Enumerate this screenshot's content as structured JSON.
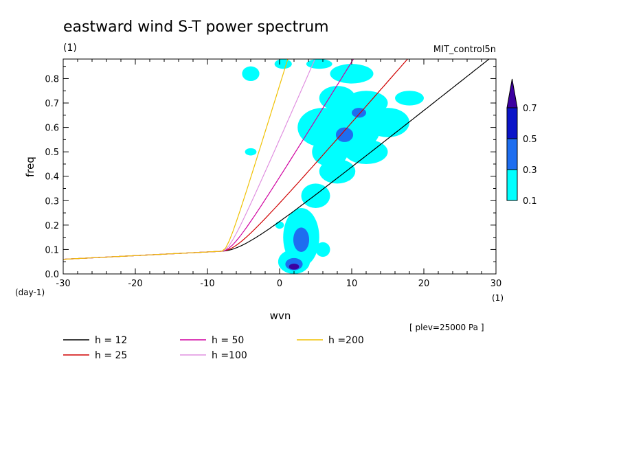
{
  "chart_data": {
    "type": "line",
    "title": "eastward wind S-T power spectrum",
    "subtitle_left": "(1)",
    "subtitle_right": "MIT_control5n",
    "xlabel": "wvn",
    "ylabel": "freq",
    "x_unit_label": "(1)",
    "y_unit_label": "(day-1)",
    "footnote": "[ plev=25000 Pa ]",
    "xlim": [
      -30,
      30
    ],
    "ylim": [
      0,
      0.88
    ],
    "x_ticks": [
      -30,
      -20,
      -10,
      0,
      10,
      20,
      30
    ],
    "y_ticks": [
      0.0,
      0.1,
      0.2,
      0.3,
      0.4,
      0.5,
      0.6,
      0.7,
      0.8
    ],
    "x_tick_labels": [
      "-30",
      "-20",
      "-10",
      "0",
      "10",
      "20",
      "30"
    ],
    "y_tick_labels": [
      "0.0",
      "0.1",
      "0.2",
      "0.3",
      "0.4",
      "0.5",
      "0.6",
      "0.7",
      "0.8"
    ],
    "series": [
      {
        "name": "h = 12",
        "color": "#000000",
        "h": 12
      },
      {
        "name": "h = 25",
        "color": "#d00000",
        "h": 25
      },
      {
        "name": "h = 50",
        "color": "#d000a0",
        "h": 50
      },
      {
        "name": "h =100",
        "color": "#e090e0",
        "h": 100
      },
      {
        "name": "h =200",
        "color": "#f0c000",
        "h": 200
      }
    ],
    "colorbar": {
      "levels": [
        "0.1",
        "0.3",
        "0.5",
        "0.7"
      ],
      "colors": [
        "#00ffff",
        "#1e6ef0",
        "#0a14c8",
        "#3c00a0"
      ]
    },
    "contour_blobs": [
      {
        "x": 5.5,
        "y": 0.86,
        "r": 1.8,
        "ry": 0.02,
        "level": 0
      },
      {
        "x": 0.5,
        "y": 0.86,
        "r": 1.2,
        "ry": 0.02,
        "level": 0
      },
      {
        "x": 10,
        "y": 0.82,
        "r": 3,
        "ry": 0.04,
        "level": 0
      },
      {
        "x": 8,
        "y": 0.72,
        "r": 2.5,
        "ry": 0.05,
        "level": 0
      },
      {
        "x": 12,
        "y": 0.7,
        "r": 3,
        "ry": 0.05,
        "level": 0
      },
      {
        "x": 6,
        "y": 0.6,
        "r": 3.5,
        "ry": 0.08,
        "level": 0
      },
      {
        "x": 10,
        "y": 0.6,
        "r": 4,
        "ry": 0.1,
        "level": 0
      },
      {
        "x": 15,
        "y": 0.62,
        "r": 3,
        "ry": 0.06,
        "level": 0
      },
      {
        "x": 7,
        "y": 0.5,
        "r": 2.5,
        "ry": 0.06,
        "level": 0
      },
      {
        "x": 12,
        "y": 0.5,
        "r": 3,
        "ry": 0.05,
        "level": 0
      },
      {
        "x": 8,
        "y": 0.42,
        "r": 2.5,
        "ry": 0.05,
        "level": 0
      },
      {
        "x": 5,
        "y": 0.32,
        "r": 2,
        "ry": 0.05,
        "level": 0
      },
      {
        "x": 3,
        "y": 0.15,
        "r": 2.5,
        "ry": 0.12,
        "level": 0
      },
      {
        "x": 2,
        "y": 0.05,
        "r": 2.2,
        "ry": 0.05,
        "level": 0
      },
      {
        "x": 6,
        "y": 0.1,
        "r": 1,
        "ry": 0.03,
        "level": 0
      },
      {
        "x": -4,
        "y": 0.82,
        "r": 1.2,
        "ry": 0.03,
        "level": 0
      },
      {
        "x": -4,
        "y": 0.5,
        "r": 0.8,
        "ry": 0.015,
        "level": 0
      },
      {
        "x": 0,
        "y": 0.2,
        "r": 0.6,
        "ry": 0.015,
        "level": 0
      },
      {
        "x": 18,
        "y": 0.72,
        "r": 2,
        "ry": 0.03,
        "level": 0
      },
      {
        "x": 9,
        "y": 0.57,
        "r": 1.2,
        "ry": 0.03,
        "level": 1
      },
      {
        "x": 11,
        "y": 0.66,
        "r": 1,
        "ry": 0.02,
        "level": 1
      },
      {
        "x": 3,
        "y": 0.14,
        "r": 1.1,
        "ry": 0.05,
        "level": 1
      },
      {
        "x": 2,
        "y": 0.04,
        "r": 1.2,
        "ry": 0.025,
        "level": 1
      },
      {
        "x": 2,
        "y": 0.03,
        "r": 0.7,
        "ry": 0.012,
        "level": 3
      }
    ]
  }
}
